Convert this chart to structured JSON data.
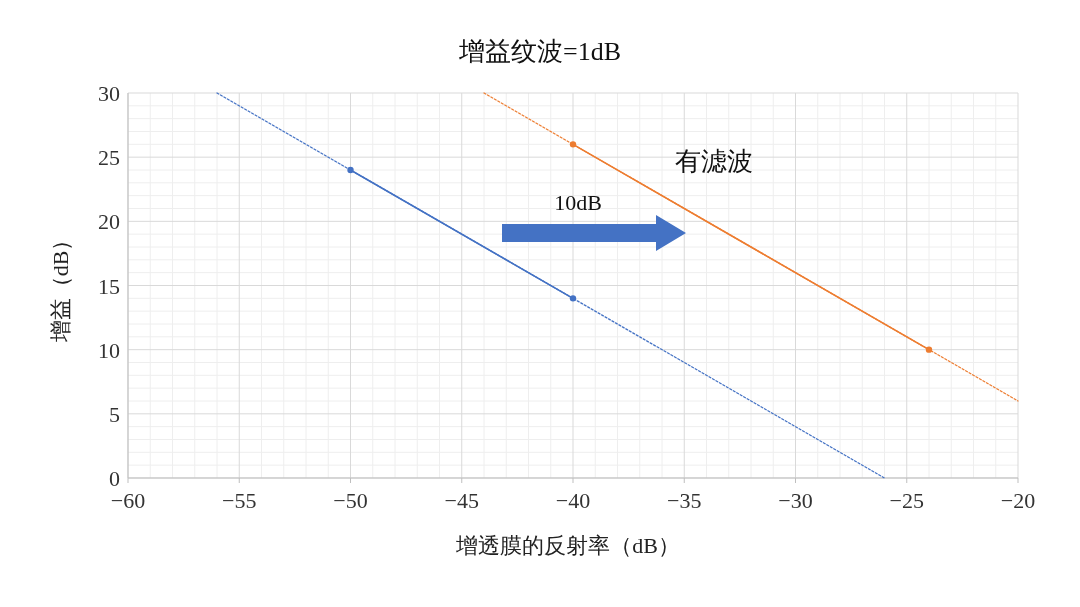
{
  "chart_data": {
    "type": "line",
    "title": "增益纹波=1dB",
    "xlabel": "增透膜的反射率（dB）",
    "ylabel": "增益（dB）",
    "series": [
      {
        "color": "#4472c4",
        "x": [
          -50,
          -40
        ],
        "values": [
          24,
          14
        ],
        "marker": "circle",
        "line_style": "solid"
      },
      {
        "color": "#4472c4",
        "x": [
          -56,
          -26
        ],
        "values": [
          30,
          0
        ],
        "marker": "none",
        "line_style": "dotted"
      },
      {
        "color": "#ed7d31",
        "x": [
          -40,
          -24
        ],
        "values": [
          26,
          10
        ],
        "marker": "circle",
        "line_style": "solid"
      },
      {
        "color": "#ed7d31",
        "x": [
          -44,
          -20
        ],
        "values": [
          30,
          6
        ],
        "marker": "none",
        "line_style": "dotted"
      }
    ],
    "xlim": [
      -60,
      -20
    ],
    "xticks": [
      -60,
      -55,
      -50,
      -45,
      -40,
      -35,
      -30,
      -25,
      -20
    ],
    "ylim": [
      0,
      30
    ],
    "yticks": [
      0,
      5,
      10,
      15,
      20,
      25,
      30
    ],
    "grid": true,
    "annotations": [
      "10dB",
      "有滤波"
    ]
  }
}
